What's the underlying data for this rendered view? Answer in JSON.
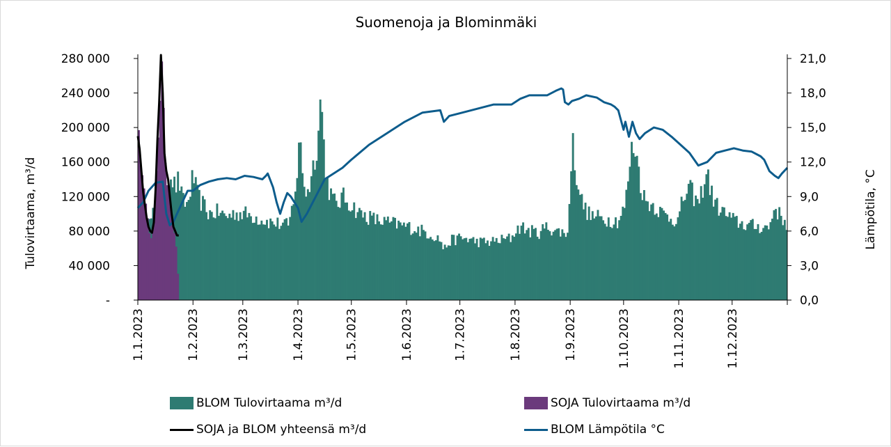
{
  "chart_data": {
    "type": "bar",
    "title": "Suomenoja ja Blominmäki",
    "ylabel": "Tulovirtaama, m³/d",
    "y2label": "Lämpötila, °C",
    "ylim": [
      0,
      280000
    ],
    "y2lim": [
      0,
      21
    ],
    "yticks": [
      "-",
      "40 000",
      "80 000",
      "120 000",
      "160 000",
      "200 000",
      "240 000",
      "280 000"
    ],
    "y2ticks": [
      "0,0",
      "3,0",
      "6,0",
      "9,0",
      "12,0",
      "15,0",
      "18,0",
      "21,0"
    ],
    "xticks": [
      "1.1.2023",
      "1.2.2023",
      "1.3.2023",
      "1.4.2023",
      "1.5.2023",
      "1.6.2023",
      "1.7.2023",
      "1.8.2023",
      "1.9.2023",
      "1.10.2023",
      "1.11.2023",
      "1.12.2023"
    ],
    "x_range_days": [
      0,
      365
    ],
    "legend_position": "bottom",
    "series": [
      {
        "name": "BLOM Tulovirtaama m³/d",
        "kind": "bar",
        "color": "#2E7B72",
        "x_day": [
          0,
          4,
          8,
          10,
          14,
          16,
          18,
          21,
          23,
          25,
          28,
          31,
          33,
          35,
          37,
          40,
          45,
          50,
          55,
          60,
          65,
          70,
          72,
          75,
          80,
          85,
          90,
          91,
          93,
          95,
          97,
          99,
          101,
          103,
          105,
          107,
          110,
          112,
          115,
          120,
          125,
          130,
          135,
          140,
          145,
          150,
          155,
          160,
          165,
          170,
          172,
          175,
          178,
          181,
          185,
          190,
          195,
          200,
          205,
          210,
          212,
          215,
          220,
          225,
          230,
          235,
          240,
          242,
          244,
          246,
          250,
          254,
          260,
          265,
          270,
          274,
          276,
          278,
          280,
          282,
          285,
          290,
          295,
          300,
          304,
          306,
          310,
          315,
          318,
          320,
          322,
          325,
          330,
          335,
          340,
          345,
          350,
          355,
          358,
          360,
          365
        ],
        "values": [
          60000,
          80000,
          95000,
          110000,
          98000,
          120000,
          150000,
          130000,
          140000,
          115000,
          110000,
          145000,
          125000,
          115000,
          110000,
          100000,
          102000,
          97000,
          101000,
          100000,
          97000,
          93000,
          92000,
          90000,
          88000,
          86000,
          150000,
          195000,
          140000,
          120000,
          140000,
          160000,
          185000,
          240000,
          160000,
          130000,
          115000,
          110000,
          120000,
          110000,
          100000,
          96000,
          92000,
          90000,
          88000,
          86000,
          83000,
          80000,
          76000,
          70000,
          58000,
          68000,
          70000,
          72000,
          71000,
          68000,
          67000,
          68000,
          70000,
          72000,
          80000,
          85000,
          80000,
          78000,
          85000,
          80000,
          78000,
          80000,
          190000,
          150000,
          110000,
          98000,
          95000,
          93000,
          92000,
          110000,
          150000,
          180000,
          175000,
          140000,
          115000,
          110000,
          100000,
          95000,
          92000,
          115000,
          130000,
          110000,
          135000,
          150000,
          125000,
          110000,
          100000,
          92000,
          88000,
          86000,
          85000,
          84000,
          110000,
          100000,
          88000
        ]
      },
      {
        "name": "SOJA Tulovirtaama m³/d",
        "kind": "bar",
        "color": "#6B3A7C",
        "x_day": [
          0,
          1,
          2,
          3,
          4,
          5,
          6,
          7,
          8,
          9,
          10,
          11,
          12,
          13,
          14,
          15,
          16,
          17,
          18,
          19,
          20,
          21,
          22,
          23
        ],
        "values": [
          190000,
          175000,
          150000,
          125000,
          110000,
          95000,
          85000,
          80000,
          78000,
          90000,
          130000,
          185000,
          230000,
          255000,
          240000,
          170000,
          150000,
          140000,
          120000,
          100000,
          85000,
          70000,
          60000,
          0
        ]
      },
      {
        "name": "SOJA ja BLOM yhteensä m³/d",
        "kind": "line",
        "color": "#000000",
        "x_day": [
          0,
          1,
          2,
          3,
          4,
          5,
          6,
          7,
          8,
          9,
          10,
          11,
          12,
          13,
          14,
          15,
          16,
          17,
          18,
          19,
          20,
          21,
          22,
          23
        ],
        "values": [
          190000,
          175000,
          150000,
          125000,
          110000,
          95000,
          85000,
          80000,
          78000,
          90000,
          130000,
          185000,
          230000,
          284000,
          240000,
          170000,
          150000,
          140000,
          120000,
          100000,
          85000,
          80000,
          75000,
          75000
        ]
      },
      {
        "name": "BLOM Lämpötila °C",
        "kind": "line",
        "axis": "right",
        "color": "#0D5C8C",
        "x_day": [
          0,
          3,
          6,
          10,
          14,
          16,
          18,
          20,
          22,
          25,
          28,
          31,
          35,
          40,
          45,
          50,
          55,
          60,
          65,
          70,
          72,
          73,
          74,
          76,
          78,
          80,
          82,
          84,
          86,
          88,
          90,
          92,
          95,
          100,
          105,
          110,
          115,
          120,
          130,
          140,
          150,
          160,
          170,
          172,
          175,
          180,
          190,
          200,
          210,
          215,
          220,
          225,
          230,
          235,
          238,
          239,
          240,
          242,
          244,
          248,
          252,
          258,
          262,
          266,
          268,
          270,
          273,
          274,
          276,
          278,
          280,
          282,
          285,
          290,
          295,
          300,
          305,
          310,
          315,
          320,
          325,
          330,
          335,
          340,
          345,
          350,
          352,
          355,
          358,
          360,
          362,
          365
        ],
        "values": [
          8.0,
          8.5,
          9.5,
          10.2,
          10.3,
          7.5,
          6.5,
          6.8,
          7.5,
          8.5,
          9.5,
          9.5,
          10.0,
          10.3,
          10.5,
          10.6,
          10.5,
          10.8,
          10.7,
          10.5,
          10.8,
          11.0,
          10.6,
          9.8,
          8.5,
          7.5,
          8.5,
          9.3,
          9.0,
          8.5,
          8.0,
          6.8,
          7.5,
          9.0,
          10.5,
          11.0,
          11.5,
          12.2,
          13.5,
          14.5,
          15.5,
          16.3,
          16.5,
          15.5,
          16.0,
          16.2,
          16.6,
          17.0,
          17.0,
          17.5,
          17.8,
          17.8,
          17.8,
          18.2,
          18.4,
          18.3,
          17.2,
          17.0,
          17.3,
          17.5,
          17.8,
          17.6,
          17.2,
          17.0,
          16.8,
          16.5,
          14.8,
          15.5,
          14.2,
          15.5,
          14.5,
          14.0,
          14.5,
          15.0,
          14.8,
          14.2,
          13.5,
          12.8,
          11.7,
          12.0,
          12.8,
          13.0,
          13.2,
          13.0,
          12.9,
          12.5,
          12.2,
          11.2,
          10.8,
          10.6,
          11.0,
          11.5
        ]
      }
    ]
  }
}
